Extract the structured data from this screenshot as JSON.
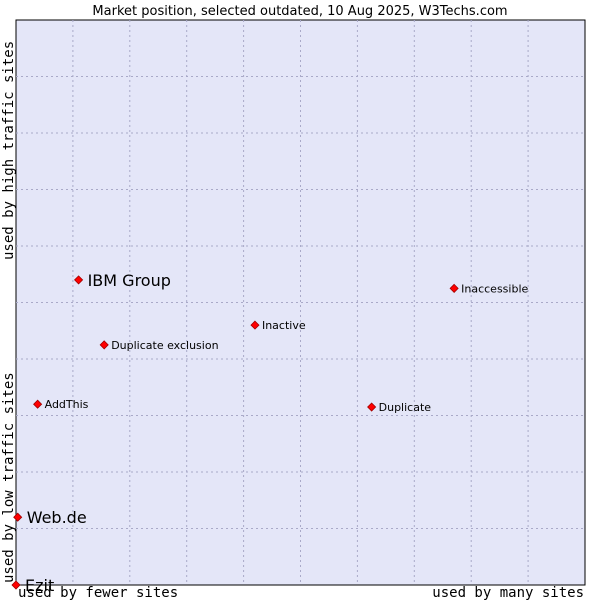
{
  "chart_data": {
    "type": "scatter",
    "title": "Market position, selected outdated, 10 Aug 2025, W3Techs.com",
    "xlabel_left": "used by fewer sites",
    "xlabel_right": "used by many sites",
    "ylabel_bottom": "used by low traffic sites",
    "ylabel_top": "used by high traffic sites",
    "xlim": [
      0,
      100
    ],
    "ylim": [
      0,
      100
    ],
    "grid": true,
    "colors": {
      "background": "#e4e6f8",
      "grid": "#a9a9c8",
      "marker": "#ff0000",
      "marker_edge": "#a00000"
    },
    "points": [
      {
        "label": "IBM Group",
        "x": 11,
        "y": 54,
        "size": "large"
      },
      {
        "label": "Inaccessible",
        "x": 77,
        "y": 52.5,
        "size": "small"
      },
      {
        "label": "Inactive",
        "x": 42,
        "y": 46,
        "size": "small"
      },
      {
        "label": "Duplicate exclusion",
        "x": 15.5,
        "y": 42.5,
        "size": "small"
      },
      {
        "label": "AddThis",
        "x": 3.8,
        "y": 32,
        "size": "small"
      },
      {
        "label": "Duplicate",
        "x": 62.5,
        "y": 31.5,
        "size": "small"
      },
      {
        "label": "Web.de",
        "x": 0.3,
        "y": 12,
        "size": "large"
      },
      {
        "label": "Ezit",
        "x": 0,
        "y": 0,
        "size": "large"
      }
    ]
  }
}
